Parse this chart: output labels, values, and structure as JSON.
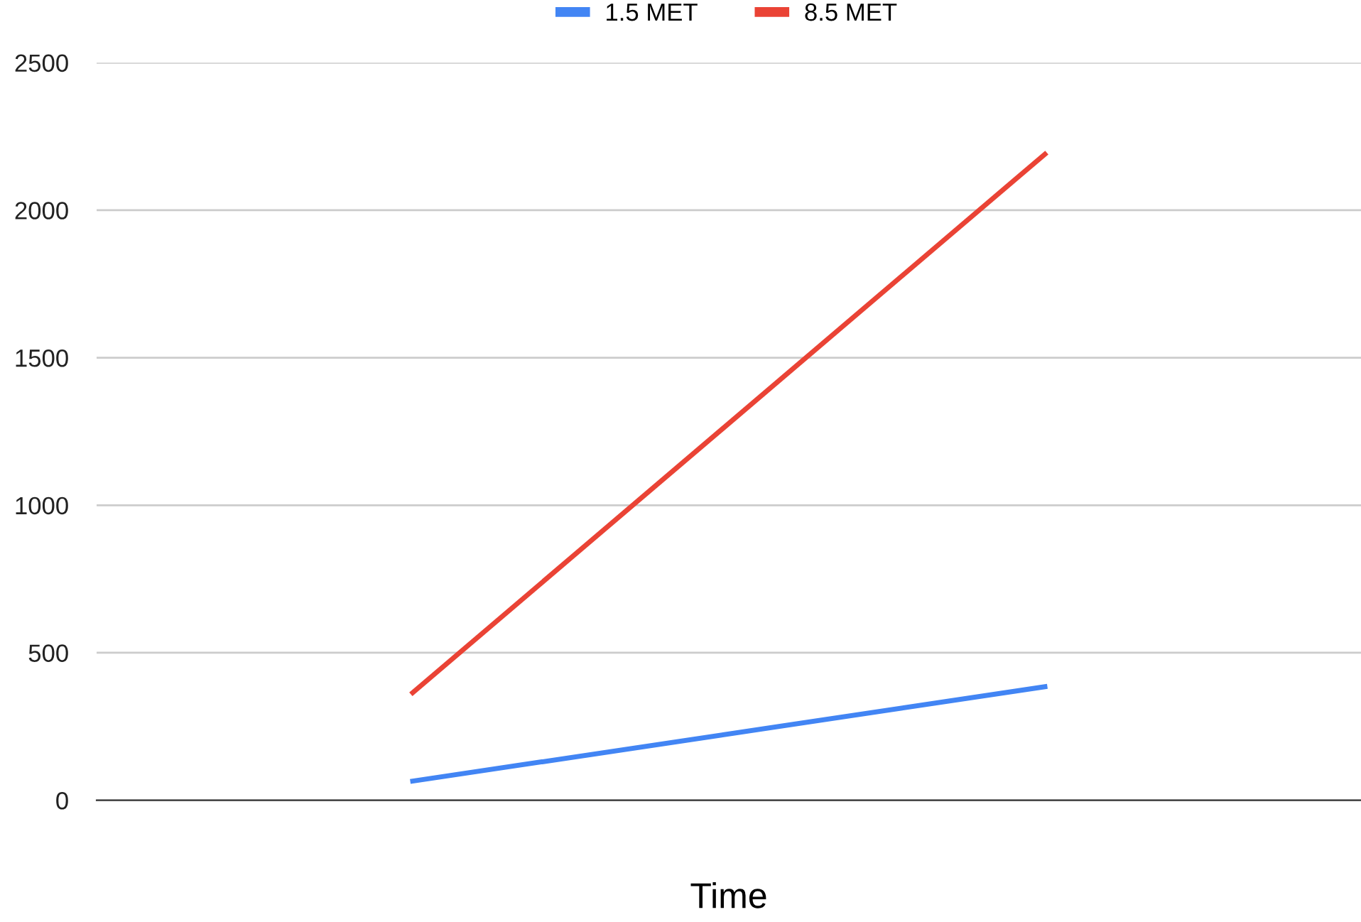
{
  "chart_data": {
    "type": "line",
    "xlabel": "Time",
    "categories": [
      null,
      null
    ],
    "series": [
      {
        "name": "1.5 MET",
        "color": "#4285f4",
        "values": [
          65,
          385
        ]
      },
      {
        "name": "8.5 MET",
        "color": "#ea4335",
        "values": [
          365,
          2190
        ]
      }
    ],
    "ylim": [
      0,
      2500
    ],
    "yticks": [
      0,
      500,
      1000,
      1500,
      2000,
      2500
    ],
    "grid": "y",
    "legend": "top",
    "marker": "none",
    "line_style": "solid"
  }
}
